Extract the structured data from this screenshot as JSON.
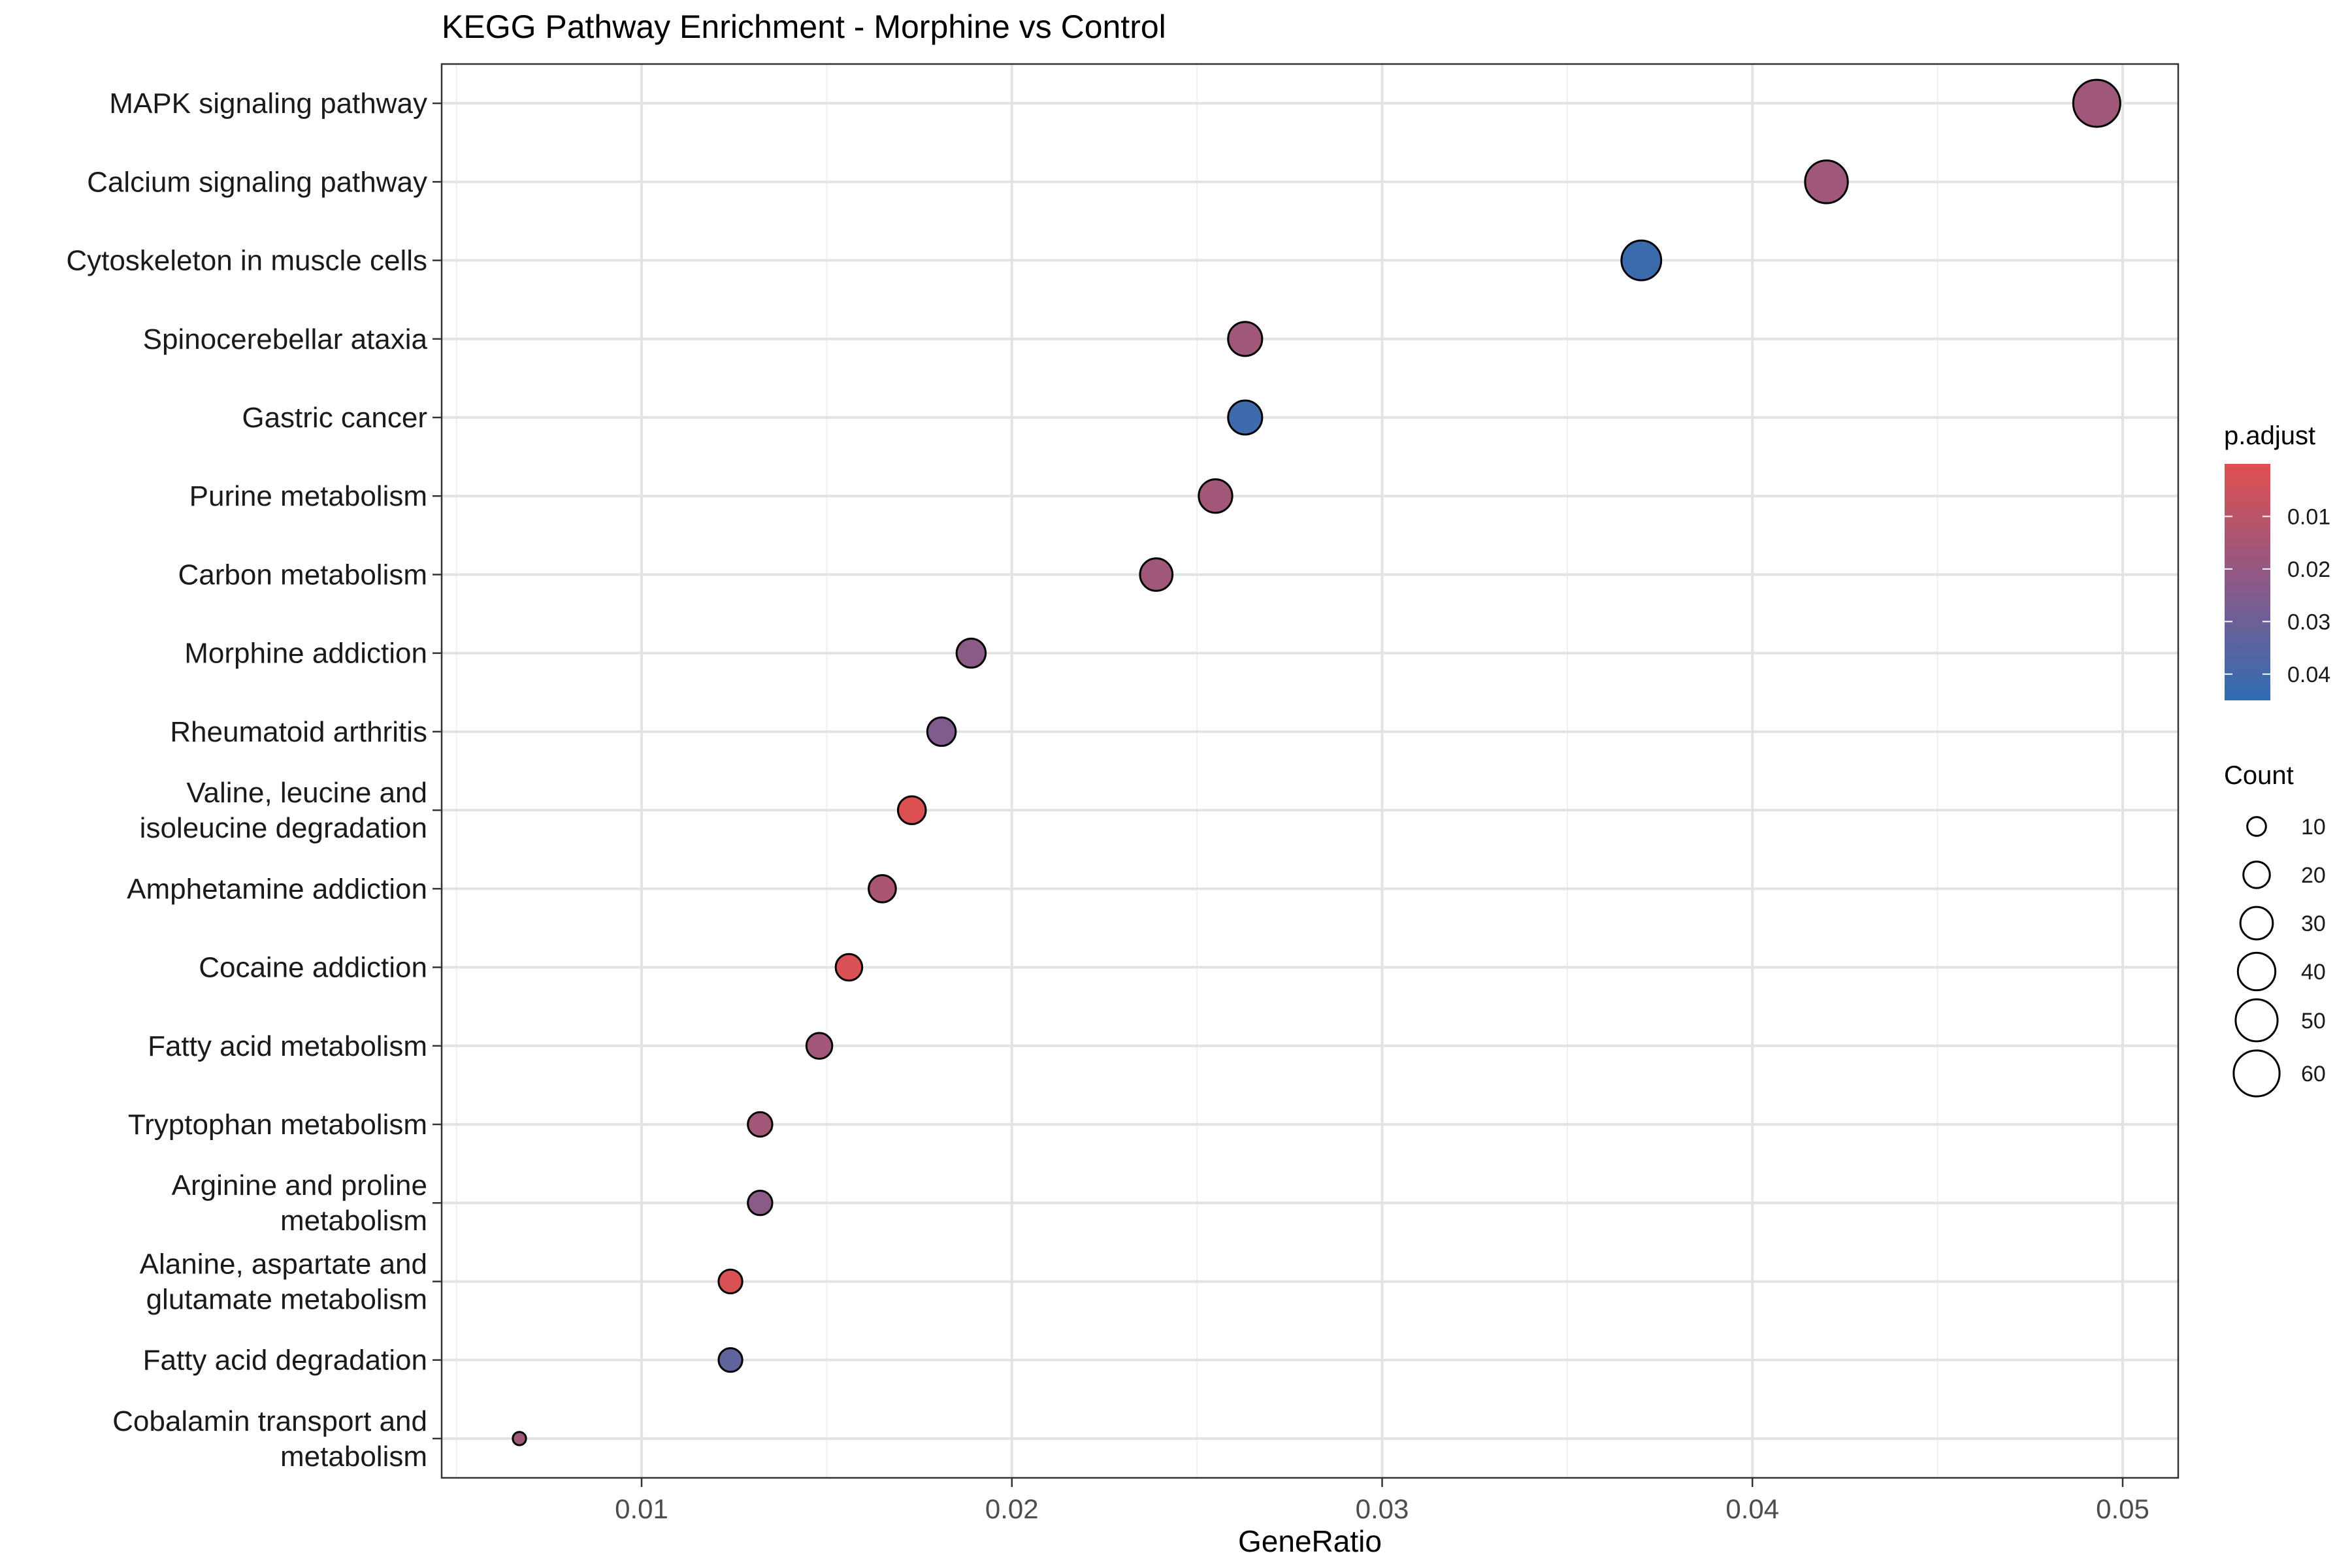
{
  "chart_data": {
    "type": "scatter",
    "title": "KEGG Pathway Enrichment - Morphine vs Control",
    "xlabel": "GeneRatio",
    "ylabel": "",
    "xlim": [
      0.0046,
      0.0515
    ],
    "x_ticks": [
      0.01,
      0.02,
      0.03,
      0.04,
      0.05
    ],
    "x_tick_labels": [
      "0.01",
      "0.02",
      "0.03",
      "0.04",
      "0.05"
    ],
    "grid": true,
    "points": [
      {
        "pathway": "MAPK signaling pathway",
        "gene_ratio": 0.0493,
        "count": 63,
        "p_adjust": 0.017
      },
      {
        "pathway": "Calcium signaling pathway",
        "gene_ratio": 0.042,
        "count": 52,
        "p_adjust": 0.017
      },
      {
        "pathway": "Cytoskeleton in muscle cells",
        "gene_ratio": 0.037,
        "count": 45,
        "p_adjust": 0.042
      },
      {
        "pathway": "Spinocerebellar ataxia",
        "gene_ratio": 0.0263,
        "count": 33,
        "p_adjust": 0.017
      },
      {
        "pathway": "Gastric cancer",
        "gene_ratio": 0.0263,
        "count": 33,
        "p_adjust": 0.041
      },
      {
        "pathway": "Purine metabolism",
        "gene_ratio": 0.0255,
        "count": 32,
        "p_adjust": 0.016
      },
      {
        "pathway": "Carbon metabolism",
        "gene_ratio": 0.0239,
        "count": 30,
        "p_adjust": 0.017
      },
      {
        "pathway": "Morphine addiction",
        "gene_ratio": 0.0189,
        "count": 24,
        "p_adjust": 0.022
      },
      {
        "pathway": "Rheumatoid arthritis",
        "gene_ratio": 0.0181,
        "count": 23,
        "p_adjust": 0.025
      },
      {
        "pathway": "Valine, leucine and isoleucine degradation",
        "gene_ratio": 0.0173,
        "count": 22,
        "p_adjust": 0.001
      },
      {
        "pathway": "Amphetamine addiction",
        "gene_ratio": 0.0165,
        "count": 21,
        "p_adjust": 0.014
      },
      {
        "pathway": "Cocaine addiction",
        "gene_ratio": 0.0156,
        "count": 20,
        "p_adjust": 0.002
      },
      {
        "pathway": "Fatty acid metabolism",
        "gene_ratio": 0.0148,
        "count": 19,
        "p_adjust": 0.016
      },
      {
        "pathway": "Tryptophan metabolism",
        "gene_ratio": 0.0132,
        "count": 17,
        "p_adjust": 0.016
      },
      {
        "pathway": "Arginine and proline metabolism",
        "gene_ratio": 0.0132,
        "count": 17,
        "p_adjust": 0.022
      },
      {
        "pathway": "Alanine, aspartate and glutamate metabolism",
        "gene_ratio": 0.0124,
        "count": 16,
        "p_adjust": 0.002
      },
      {
        "pathway": "Fatty acid degradation",
        "gene_ratio": 0.0124,
        "count": 16,
        "p_adjust": 0.033
      },
      {
        "pathway": "Cobalamin transport and metabolism",
        "gene_ratio": 0.0067,
        "count": 5,
        "p_adjust": 0.017
      }
    ],
    "y_tick_labels": [
      [
        "MAPK signaling pathway"
      ],
      [
        "Calcium signaling pathway"
      ],
      [
        "Cytoskeleton in muscle cells"
      ],
      [
        "Spinocerebellar ataxia"
      ],
      [
        "Gastric cancer"
      ],
      [
        "Purine metabolism"
      ],
      [
        "Carbon metabolism"
      ],
      [
        "Morphine addiction"
      ],
      [
        "Rheumatoid arthritis"
      ],
      [
        "Valine, leucine and",
        "isoleucine degradation"
      ],
      [
        "Amphetamine addiction"
      ],
      [
        "Cocaine addiction"
      ],
      [
        "Fatty acid metabolism"
      ],
      [
        "Tryptophan metabolism"
      ],
      [
        "Arginine and proline",
        "metabolism"
      ],
      [
        "Alanine, aspartate and",
        "glutamate metabolism"
      ],
      [
        "Fatty acid degradation"
      ],
      [
        "Cobalamin transport and",
        "metabolism"
      ]
    ],
    "color_legend": {
      "title": "p.adjust",
      "min": 0.0,
      "max": 0.045,
      "low_color": "#e05050",
      "high_color": "#2f6db3",
      "breaks": [
        0.01,
        0.02,
        0.03,
        0.04
      ],
      "break_labels": [
        "0.01",
        "0.02",
        "0.03",
        "0.04"
      ]
    },
    "size_legend": {
      "title": "Count",
      "breaks": [
        10,
        20,
        30,
        40,
        50,
        60
      ],
      "break_labels": [
        "10",
        "20",
        "30",
        "40",
        "50",
        "60"
      ]
    },
    "legend_position": "right"
  }
}
